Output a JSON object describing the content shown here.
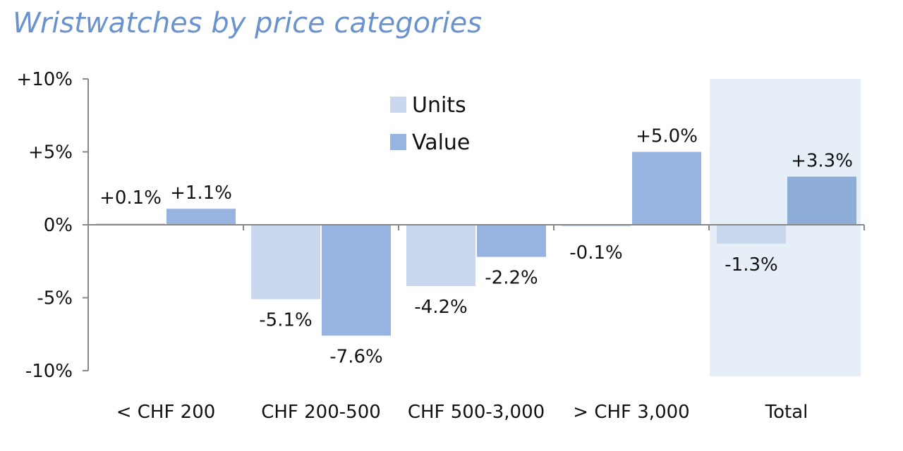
{
  "chart_data": {
    "type": "bar",
    "title": "Wristwatches by price categories",
    "categories": [
      "< CHF 200",
      "CHF 200-500",
      "CHF 500-3,000",
      "> CHF 3,000",
      "Total"
    ],
    "series": [
      {
        "name": "Units",
        "values": [
          0.1,
          -5.1,
          -4.2,
          -0.1,
          -1.3
        ],
        "labels": [
          "+0.1%",
          "-5.1%",
          "-4.2%",
          "-0.1%",
          "-1.3%"
        ]
      },
      {
        "name": "Value",
        "values": [
          1.1,
          -7.6,
          -2.2,
          5.0,
          3.3
        ],
        "labels": [
          "+1.1%",
          "-7.6%",
          "-2.2%",
          "+5.0%",
          "+3.3%"
        ]
      }
    ],
    "y_ticks": [
      {
        "value": 10,
        "label": "+10%"
      },
      {
        "value": 5,
        "label": "+5%"
      },
      {
        "value": 0,
        "label": "0%"
      },
      {
        "value": -5,
        "label": "-5%"
      },
      {
        "value": -10,
        "label": "-10%"
      }
    ],
    "ylim": [
      -10,
      10
    ],
    "legend_position": "top-center",
    "highlighted_category": "Total",
    "colors": {
      "units": "#c9d8ee",
      "value": "#97b4e0",
      "highlight_background": "#e6eef7",
      "title": "#6a93cd",
      "axis": "#888888"
    }
  }
}
